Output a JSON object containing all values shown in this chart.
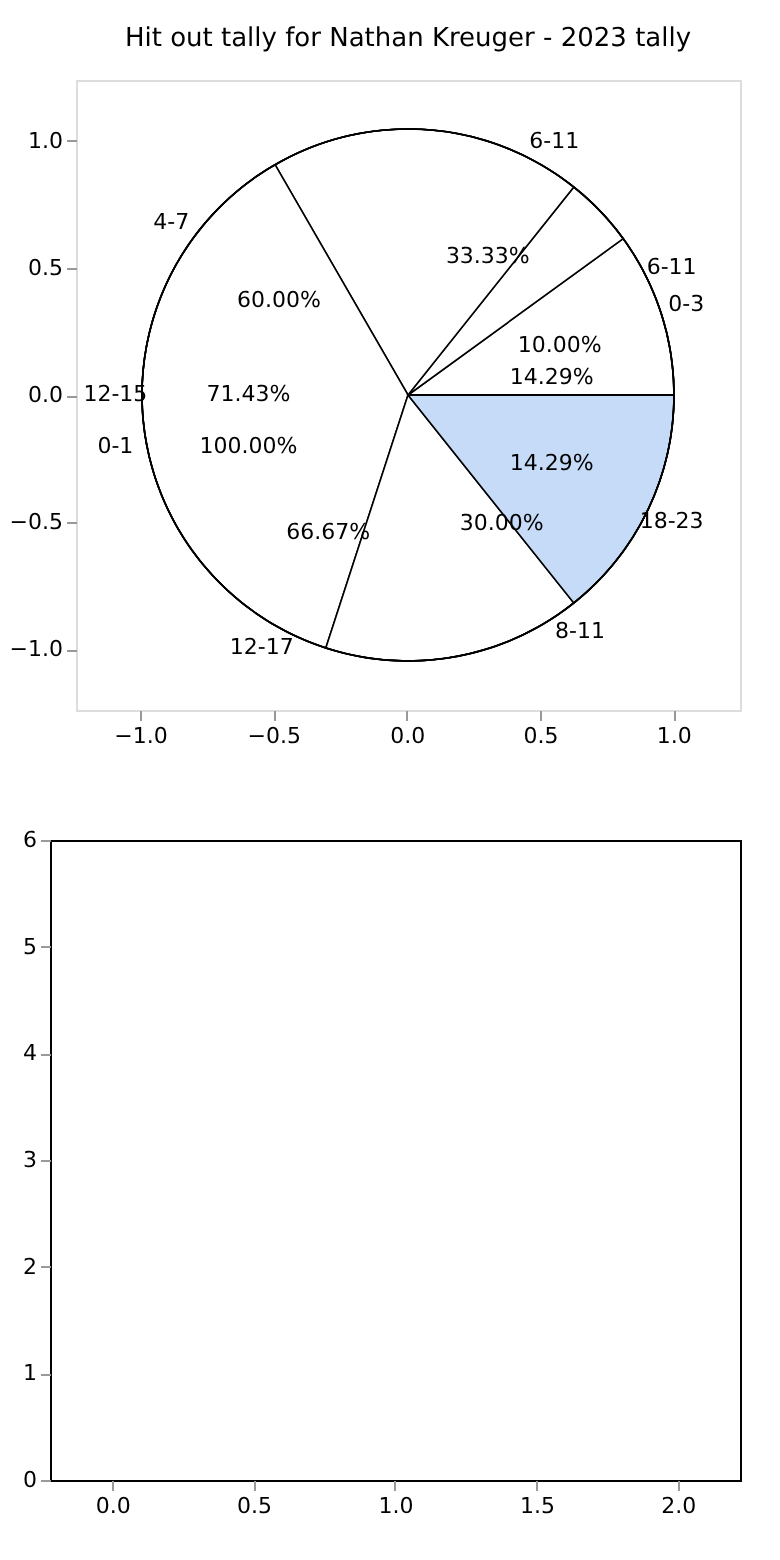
{
  "chart_data": [
    {
      "type": "scatter",
      "title": "Hit out tally for Nathan Kreuger - 2023 tally",
      "xlim": [
        -1.24,
        1.25
      ],
      "ylim": [
        -1.24,
        1.24
      ],
      "xticks": [
        {
          "value": -1,
          "label": "−1.0"
        },
        {
          "value": -0.5,
          "label": "−0.5"
        },
        {
          "value": 0,
          "label": "0.0"
        },
        {
          "value": 0.5,
          "label": "0.5"
        },
        {
          "value": 1,
          "label": "1.0"
        }
      ],
      "yticks": [
        {
          "value": -1,
          "label": "−1.0"
        },
        {
          "value": -0.5,
          "label": "−0.5"
        },
        {
          "value": 0,
          "label": "0.0"
        },
        {
          "value": 0.5,
          "label": "0.5"
        },
        {
          "value": 1,
          "label": "1.0"
        }
      ]
    },
    {
      "type": "pie",
      "categories": [
        "6-11",
        "12-17"
      ],
      "values": [
        33.33,
        66.67
      ],
      "value_labels": [
        "33.33%",
        "66.67%"
      ],
      "colors": [
        "#ffffff",
        "#ffffff"
      ]
    },
    {
      "type": "pie",
      "categories": [
        "0-3",
        "4-7",
        "8-11"
      ],
      "values": [
        10,
        60,
        30
      ],
      "value_labels": [
        "10.00%",
        "60.00%",
        "30.00%"
      ],
      "colors": [
        "#ffffff",
        "#ffffff",
        "#ffffff"
      ]
    },
    {
      "type": "pie",
      "categories": [
        "6-11",
        "12-15",
        "18-23"
      ],
      "values": [
        14.29,
        71.43,
        14.29
      ],
      "value_labels": [
        "14.29%",
        "71.43%",
        "14.29%"
      ],
      "colors": [
        "#ffffff",
        "#ffffff",
        "#c6dbf7"
      ]
    },
    {
      "type": "pie",
      "categories": [
        "0-1"
      ],
      "values": [
        100
      ],
      "value_labels": [
        "100.00%"
      ],
      "colors": [
        "#ffffff"
      ]
    },
    {
      "type": "scatter",
      "xlim": [
        -0.22,
        2.22
      ],
      "ylim": [
        0,
        6
      ],
      "xticks": [
        {
          "value": 0,
          "label": "0.0"
        },
        {
          "value": 0.5,
          "label": "0.5"
        },
        {
          "value": 1,
          "label": "1.0"
        },
        {
          "value": 1.5,
          "label": "1.5"
        },
        {
          "value": 2,
          "label": "2.0"
        }
      ],
      "yticks": [
        0,
        1,
        2,
        3,
        4,
        5,
        6
      ]
    }
  ]
}
